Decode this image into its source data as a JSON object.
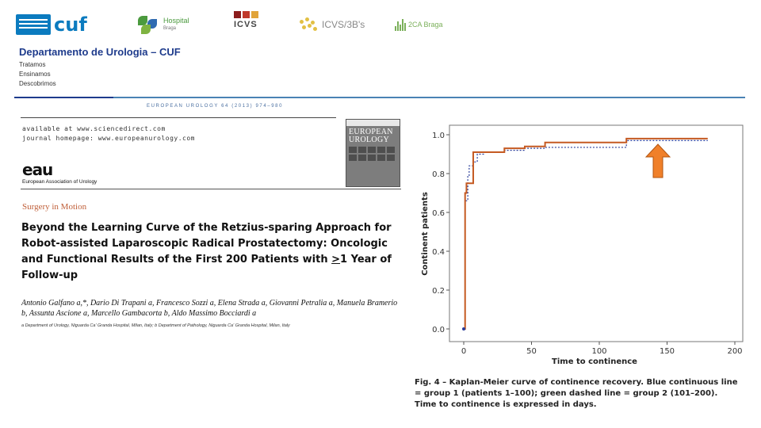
{
  "logos": {
    "cuf": "cuf",
    "hospital": "Hospital",
    "hospital_sub": "Braga",
    "icvs": "ICVS",
    "icvs3bs": "ICVS/3B's",
    "ca2": "2CA Braga"
  },
  "header": {
    "department": "Departamento de Urologia – CUF",
    "taglines": [
      "Tratamos",
      "Ensinamos",
      "Descobrimos"
    ]
  },
  "article": {
    "journal_header": "EUROPEAN UROLOGY 64 (2013) 974–980",
    "available_at": "available at www.sciencedirect.com",
    "journal_homepage": "journal homepage: www.europeanurology.com",
    "eau_logo": "eau",
    "eau_name": "European Association of Urology",
    "cover_title": "EUROPEAN UROLOGY",
    "section": "Surgery in Motion",
    "title_part1": "Beyond the Learning Curve of the Retzius-sparing Approach for Robot-assisted Laparoscopic Radical Prostatectomy: Oncologic and Functional Results of the First 200 Patients with ",
    "title_underlined": ">",
    "title_part2": "1 Year of Follow-up",
    "authors": "Antonio Galfano a,*, Dario Di Trapani a, Francesco Sozzi a, Elena Strada a, Giovanni Petralia a, Manuela Bramerio b, Assunta Ascione a, Marcello Gambacorta b, Aldo Massimo Bocciardi a",
    "affiliations": "a Department of Urology, Niguarda Ca' Granda Hospital, Milan, Italy; b Department of Pathology, Niguarda Ca' Granda Hospital, Milan, Italy"
  },
  "caption": "Fig. 4 – Kaplan-Meier curve of continence recovery. Blue continuous line = group 1 (patients 1–100); green dashed line = group 2 (101–200). Time to continence is expressed in days.",
  "colors": {
    "group1_line": "#2a3d9a",
    "group2_line": "#c55a22",
    "arrow": "#f0802a",
    "arrow_border": "#b25410"
  },
  "chart_data": {
    "type": "line",
    "xlabel": "Time to continence",
    "ylabel": "Continent patients",
    "xlim": [
      0,
      200
    ],
    "ylim": [
      0,
      1.0
    ],
    "x_ticks": [
      0,
      50,
      100,
      150,
      200
    ],
    "y_ticks": [
      0.0,
      0.2,
      0.4,
      0.6,
      0.8,
      1.0
    ],
    "grid": false,
    "series": [
      {
        "style": "step-dotted",
        "x": [
          0,
          1,
          3,
          4,
          7,
          10,
          15,
          30,
          45,
          60,
          90,
          120,
          180
        ],
        "y": [
          0.0,
          0.66,
          0.79,
          0.84,
          0.86,
          0.9,
          0.91,
          0.92,
          0.93,
          0.935,
          0.935,
          0.97,
          0.97
        ]
      },
      {
        "style": "step-solid",
        "x": [
          0,
          1,
          2,
          7,
          10,
          15,
          30,
          45,
          60,
          90,
          120,
          180
        ],
        "y": [
          0.0,
          0.7,
          0.75,
          0.91,
          0.91,
          0.91,
          0.93,
          0.94,
          0.96,
          0.96,
          0.98,
          0.98
        ]
      }
    ],
    "annotation": "up-arrow"
  }
}
